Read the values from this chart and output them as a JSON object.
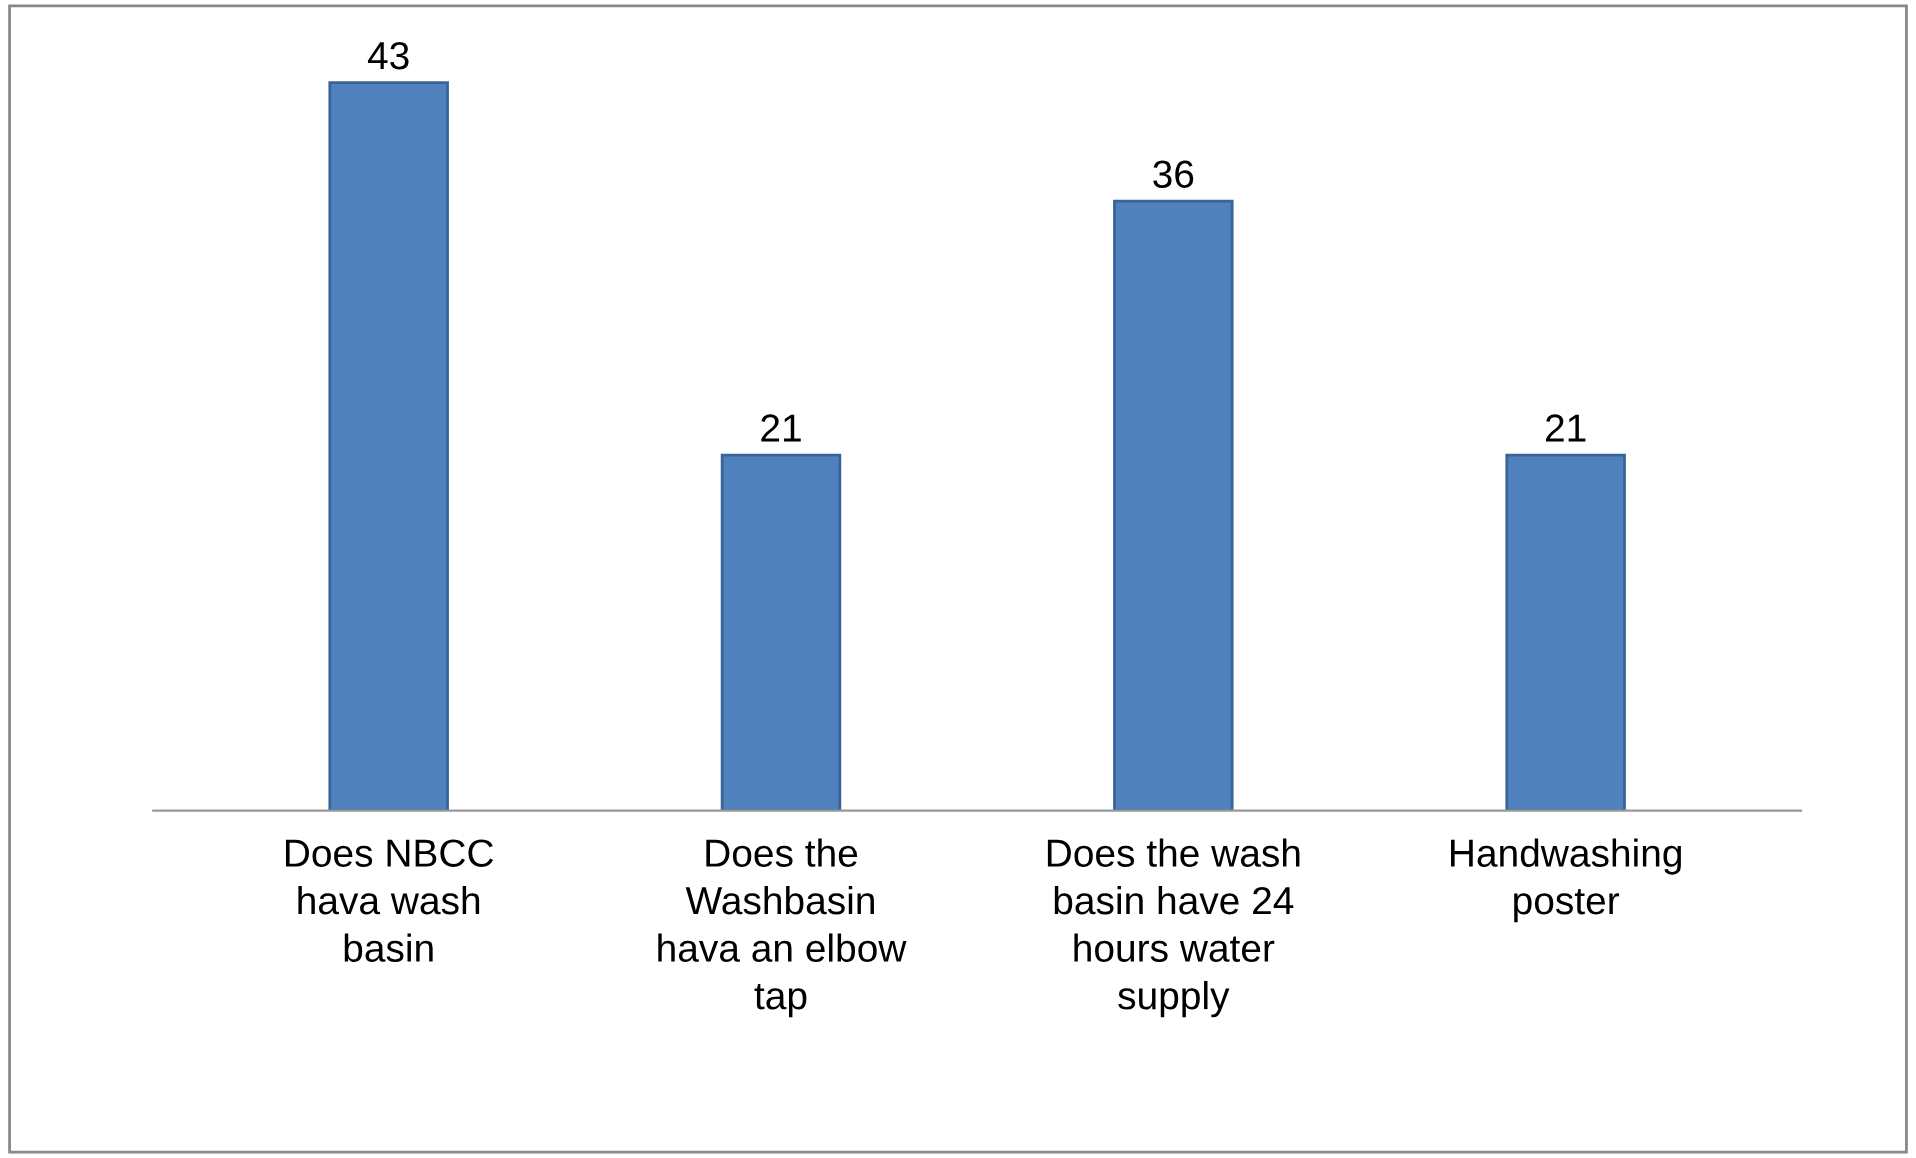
{
  "chart_data": {
    "type": "bar",
    "categories": [
      "Does NBCC\nhava wash\nbasin",
      "Does the\nWashbasin\nhava an elbow\ntap",
      "Does the wash\nbasin have 24\nhours water\nsupply",
      "Handwashing\nposter"
    ],
    "values": [
      43,
      21,
      36,
      21
    ],
    "color": "#4f81bd",
    "data_labels": true,
    "grid": false
  }
}
